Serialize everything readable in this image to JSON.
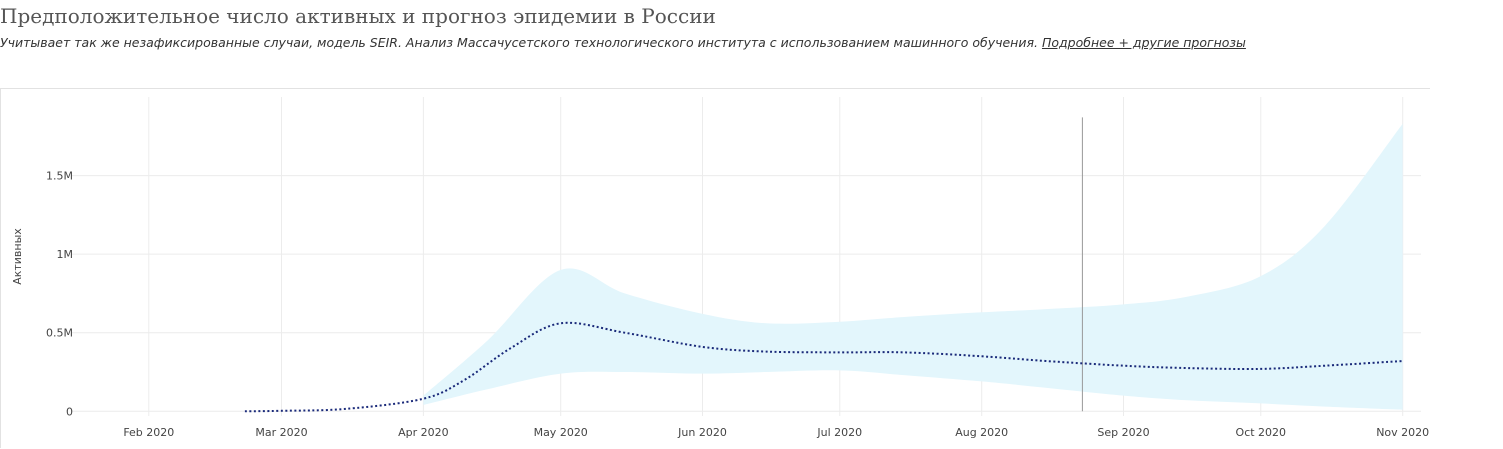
{
  "header": {
    "title": "Предположительное число активных и прогноз эпидемии в России",
    "subtitle": "Учитывает так же незафиксированные случаи, модель SEIR. Анализ Массачусетского технологического института с использованием машинного обучения.",
    "link_label": "Подробнее + другие прогнозы"
  },
  "chart_data": {
    "type": "line",
    "title": "",
    "xlabel": "",
    "ylabel": "Активных",
    "x_type": "date",
    "xlim": [
      "2020-01-15",
      "2020-11-05"
    ],
    "ylim": [
      -30000,
      2000000
    ],
    "x_ticks": [
      {
        "value": "2020-02-01",
        "label": "Feb 2020"
      },
      {
        "value": "2020-03-01",
        "label": "Mar 2020"
      },
      {
        "value": "2020-04-01",
        "label": "Apr 2020"
      },
      {
        "value": "2020-05-01",
        "label": "May 2020"
      },
      {
        "value": "2020-06-01",
        "label": "Jun 2020"
      },
      {
        "value": "2020-07-01",
        "label": "Jul 2020"
      },
      {
        "value": "2020-08-01",
        "label": "Aug 2020"
      },
      {
        "value": "2020-09-01",
        "label": "Sep 2020"
      },
      {
        "value": "2020-10-01",
        "label": "Oct 2020"
      },
      {
        "value": "2020-11-01",
        "label": "Nov 2020"
      }
    ],
    "y_ticks": [
      {
        "value": 0,
        "label": "0"
      },
      {
        "value": 500000,
        "label": "0.5M"
      },
      {
        "value": 1000000,
        "label": "1M"
      },
      {
        "value": 1500000,
        "label": "1.5M"
      }
    ],
    "grid": true,
    "legend": "none",
    "vertical_marker": {
      "x": "2020-08-23"
    },
    "colors": {
      "line": "#1a2a7a",
      "band": "#e3f6fc",
      "marker": "#999999",
      "grid": "#ececec"
    },
    "band": {
      "x": [
        "2020-04-01",
        "2020-04-15",
        "2020-05-01",
        "2020-05-15",
        "2020-06-01",
        "2020-06-15",
        "2020-07-01",
        "2020-07-15",
        "2020-08-01",
        "2020-08-15",
        "2020-09-01",
        "2020-09-15",
        "2020-10-01",
        "2020-10-15",
        "2020-11-01"
      ],
      "lower": [
        40000,
        140000,
        240000,
        250000,
        240000,
        250000,
        260000,
        230000,
        190000,
        150000,
        100000,
        70000,
        50000,
        30000,
        10000
      ],
      "upper": [
        100000,
        450000,
        900000,
        750000,
        620000,
        560000,
        570000,
        600000,
        630000,
        650000,
        680000,
        730000,
        860000,
        1180000,
        1830000
      ]
    },
    "series": [
      {
        "x": [
          "2020-02-22",
          "2020-03-01",
          "2020-03-15",
          "2020-04-01",
          "2020-04-10",
          "2020-04-20",
          "2020-05-01",
          "2020-05-15",
          "2020-06-01",
          "2020-06-15",
          "2020-07-01",
          "2020-07-15",
          "2020-08-01",
          "2020-08-15",
          "2020-09-01",
          "2020-09-15",
          "2020-10-01",
          "2020-10-15",
          "2020-11-01"
        ],
        "values": [
          0,
          3000,
          15000,
          80000,
          200000,
          400000,
          560000,
          500000,
          410000,
          380000,
          375000,
          375000,
          350000,
          320000,
          290000,
          275000,
          270000,
          290000,
          320000
        ]
      }
    ]
  }
}
